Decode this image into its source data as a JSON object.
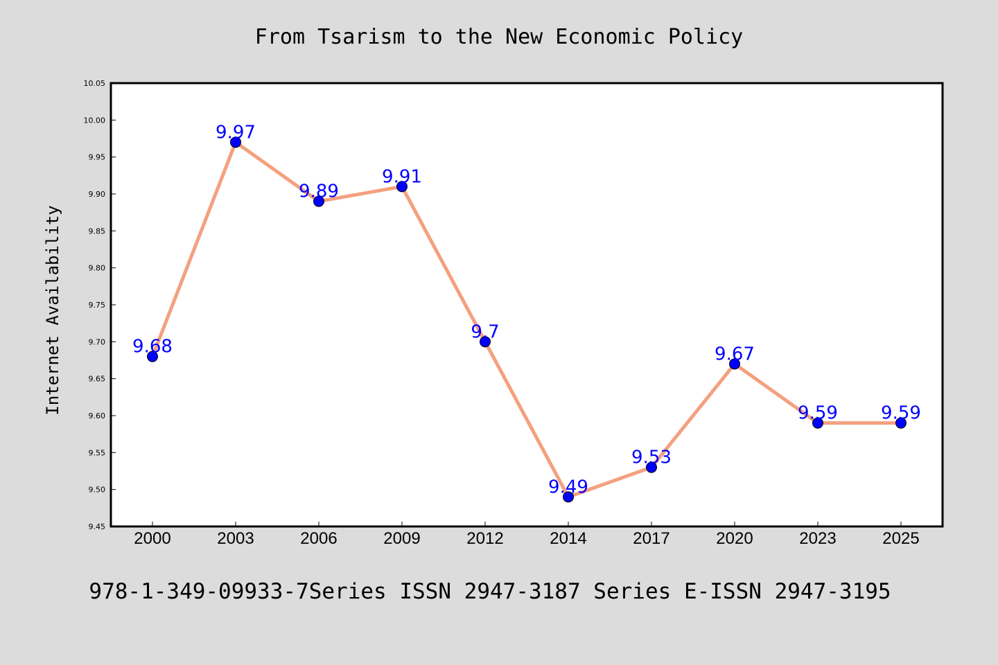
{
  "chart_data": {
    "type": "line",
    "title": "From Tsarism to the New Economic Policy",
    "ylabel": "Internet Availability",
    "xlabel": "",
    "caption": "978-1-349-09933-7Series ISSN 2947-3187 Series E-ISSN 2947-3195",
    "categories": [
      "2000",
      "2003",
      "2006",
      "2009",
      "2012",
      "2014",
      "2017",
      "2020",
      "2023",
      "2025"
    ],
    "series": [
      {
        "values": [
          9.68,
          9.97,
          9.89,
          9.91,
          9.7,
          9.49,
          9.53,
          9.67,
          9.59,
          9.59
        ],
        "data_labels": [
          "9.68",
          "9.97",
          "9.89",
          "9.91",
          "9.7",
          "9.49",
          "9.53",
          "9.67",
          "9.59",
          "9.59"
        ],
        "line_color": "#f4a07f",
        "marker_color": "#0000ff",
        "label_color": "#0000ff"
      }
    ],
    "ylim": [
      9.45,
      10.05
    ],
    "yticks": [
      "9.45",
      "9.50",
      "9.55",
      "9.60",
      "9.65",
      "9.70",
      "9.75",
      "9.80",
      "9.85",
      "9.90",
      "9.95",
      "10.00",
      "10.05"
    ],
    "grid": false,
    "legend": "none",
    "background": "#dcdcdc",
    "plot_background": "#ffffff"
  }
}
